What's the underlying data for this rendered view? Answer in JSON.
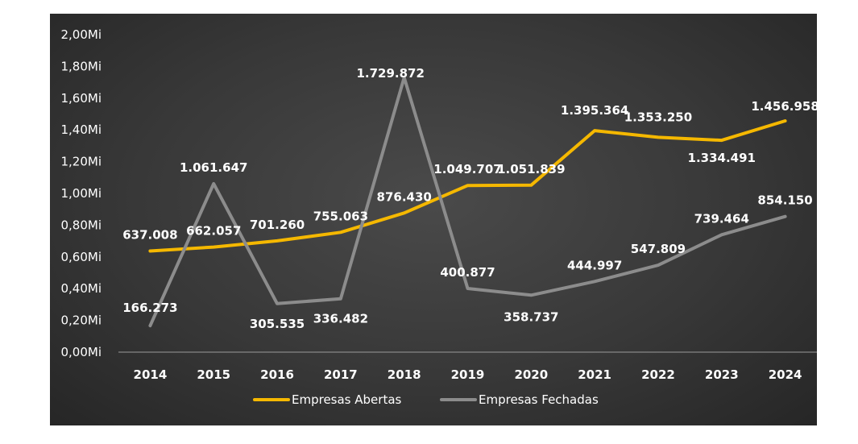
{
  "chart_data": {
    "type": "line",
    "categories": [
      "2014",
      "2015",
      "2016",
      "2017",
      "2018",
      "2019",
      "2020",
      "2021",
      "2022",
      "2023",
      "2024"
    ],
    "y_tick_labels": [
      "0,00Mi",
      "0,20Mi",
      "0,40Mi",
      "0,60Mi",
      "0,80Mi",
      "1,00Mi",
      "1,20Mi",
      "1,40Mi",
      "1,60Mi",
      "1,80Mi",
      "2,00Mi"
    ],
    "ylim": [
      0,
      2000000
    ],
    "grid": false,
    "legend_position": "bottom",
    "series": [
      {
        "name": "Empresas Abertas",
        "color": "#f5b800",
        "values": [
          637008,
          662057,
          701260,
          755063,
          876430,
          1049707,
          1051839,
          1395364,
          1353250,
          1334491,
          1456958
        ],
        "labels": [
          "637.008",
          "662.057",
          "701.260",
          "755.063",
          "876.430",
          "1.049.707",
          "1.051.839",
          "1.395.364",
          "1.353.250",
          "1.334.491",
          "1.456.958"
        ]
      },
      {
        "name": "Empresas Fechadas",
        "color": "#8c8c8c",
        "values": [
          166273,
          1061647,
          305535,
          336482,
          1729872,
          400877,
          358737,
          444997,
          547809,
          739464,
          854150
        ],
        "labels": [
          "166.273",
          "1.061.647",
          "305.535",
          "336.482",
          "1.729.872",
          "400.877",
          "358.737",
          "444.997",
          "547.809",
          "739.464",
          "854.150"
        ]
      }
    ]
  }
}
